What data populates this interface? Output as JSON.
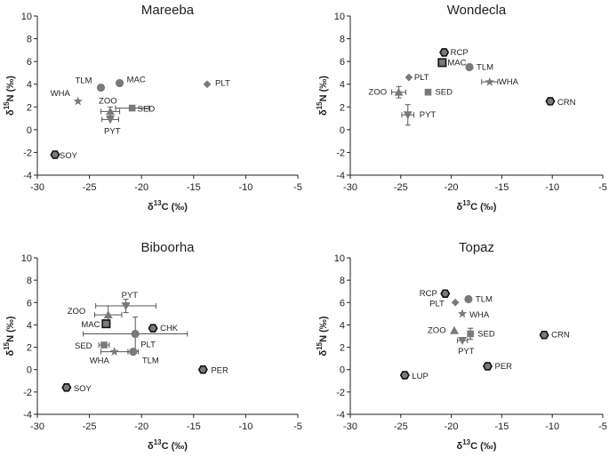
{
  "chart_data": [
    {
      "type": "scatter",
      "title": "Mareeba",
      "xlabel": "δ13C (‰)",
      "ylabel": "δ15N (‰)",
      "xlim": [
        -30,
        -5
      ],
      "ylim": [
        -4,
        10
      ],
      "xticks": [
        -30,
        -25,
        -20,
        -15,
        -10,
        -5
      ],
      "yticks": [
        -4,
        -2,
        0,
        2,
        4,
        6,
        8,
        10
      ],
      "grid": false,
      "points": [
        {
          "label": "TLM",
          "x": -23.9,
          "y": 3.7,
          "marker": "circle"
        },
        {
          "label": "MAC",
          "x": -22.1,
          "y": 4.1,
          "marker": "circle"
        },
        {
          "label": "PLT",
          "x": -13.7,
          "y": 4.0,
          "marker": "diamond"
        },
        {
          "label": "WHA",
          "x": -26.1,
          "y": 2.5,
          "marker": "star"
        },
        {
          "label": "ZOO",
          "x": -23.0,
          "y": 1.6,
          "marker": "triangle",
          "xerr": 0.9,
          "yerr": 0.4
        },
        {
          "label": "SED",
          "x": -20.9,
          "y": 1.9,
          "marker": "square",
          "xerr": 1.6
        },
        {
          "label": "PYT",
          "x": -23.0,
          "y": 0.9,
          "marker": "triangle-down",
          "xerr": 0.8
        },
        {
          "label": "SOY",
          "x": -28.3,
          "y": -2.2,
          "marker": "hexagon"
        }
      ]
    },
    {
      "type": "scatter",
      "title": "Wondecla",
      "xlabel": "δ13C (‰)",
      "ylabel": "δ15N (‰)",
      "xlim": [
        -30,
        -5
      ],
      "ylim": [
        -4,
        10
      ],
      "xticks": [
        -30,
        -25,
        -20,
        -15,
        -10,
        -5
      ],
      "yticks": [
        -4,
        -2,
        0,
        2,
        4,
        6,
        8,
        10
      ],
      "grid": false,
      "points": [
        {
          "label": "RCP",
          "x": -20.7,
          "y": 6.8,
          "marker": "hexagon"
        },
        {
          "label": "MAC",
          "x": -20.9,
          "y": 5.9,
          "marker": "square-black"
        },
        {
          "label": "TLM",
          "x": -18.2,
          "y": 5.5,
          "marker": "circle"
        },
        {
          "label": "PLT",
          "x": -24.2,
          "y": 4.6,
          "marker": "diamond"
        },
        {
          "label": "WHA",
          "x": -16.2,
          "y": 4.2,
          "marker": "star",
          "xerr": 0.8
        },
        {
          "label": "ZOO",
          "x": -25.2,
          "y": 3.3,
          "marker": "triangle",
          "xerr": 0.7,
          "yerr": 0.5
        },
        {
          "label": "SED",
          "x": -22.3,
          "y": 3.3,
          "marker": "square"
        },
        {
          "label": "CRN",
          "x": -10.2,
          "y": 2.5,
          "marker": "hexagon"
        },
        {
          "label": "PYT",
          "x": -24.3,
          "y": 1.3,
          "marker": "triangle-down",
          "xerr": 0.6,
          "yerr": 0.9
        }
      ]
    },
    {
      "type": "scatter",
      "title": "Biboorha",
      "xlabel": "δ13C (‰)",
      "ylabel": "δ15N (‰)",
      "xlim": [
        -30,
        -5
      ],
      "ylim": [
        -4,
        10
      ],
      "xticks": [
        -30,
        -25,
        -20,
        -15,
        -10,
        -5
      ],
      "yticks": [
        -4,
        -2,
        0,
        2,
        4,
        6,
        8,
        10
      ],
      "grid": false,
      "points": [
        {
          "label": "PYT",
          "x": -21.5,
          "y": 5.7,
          "marker": "triangle-down",
          "xerr": 2.9,
          "yerr": 0.6
        },
        {
          "label": "ZOO",
          "x": -23.2,
          "y": 4.9,
          "marker": "triangle",
          "xerr": 1.3,
          "yerr": 0.8
        },
        {
          "label": "MAC",
          "x": -23.4,
          "y": 4.1,
          "marker": "square-black"
        },
        {
          "label": "CHK",
          "x": -18.9,
          "y": 3.7,
          "marker": "hexagon"
        },
        {
          "label": "PLT",
          "x": -20.6,
          "y": 3.2,
          "marker": "circle",
          "xerr": 5.0,
          "yerr": 1.5
        },
        {
          "label": "SED",
          "x": -23.6,
          "y": 2.2,
          "marker": "square",
          "xerr": 0.5
        },
        {
          "label": "WHA",
          "x": -22.6,
          "y": 1.6,
          "marker": "star",
          "xerr": 1.3
        },
        {
          "label": "TLM",
          "x": -20.8,
          "y": 1.6,
          "marker": "circle",
          "xerr": 0.5
        },
        {
          "label": "PER",
          "x": -14.1,
          "y": 0.0,
          "marker": "hexagon"
        },
        {
          "label": "SOY",
          "x": -27.2,
          "y": -1.6,
          "marker": "hexagon"
        }
      ]
    },
    {
      "type": "scatter",
      "title": "Topaz",
      "xlabel": "δ13C (‰)",
      "ylabel": "δ15N (‰)",
      "xlim": [
        -30,
        -5
      ],
      "ylim": [
        -4,
        10
      ],
      "xticks": [
        -30,
        -25,
        -20,
        -15,
        -10,
        -5
      ],
      "yticks": [
        -4,
        -2,
        0,
        2,
        4,
        6,
        8,
        10
      ],
      "grid": false,
      "points": [
        {
          "label": "RCP",
          "x": -20.6,
          "y": 6.8,
          "marker": "hexagon"
        },
        {
          "label": "TLM",
          "x": -18.3,
          "y": 6.3,
          "marker": "circle"
        },
        {
          "label": "PLT",
          "x": -19.6,
          "y": 6.0,
          "marker": "diamond"
        },
        {
          "label": "WHA",
          "x": -18.9,
          "y": 5.0,
          "marker": "star"
        },
        {
          "label": "ZOO",
          "x": -19.7,
          "y": 3.5,
          "marker": "triangle"
        },
        {
          "label": "SED",
          "x": -18.1,
          "y": 3.2,
          "marker": "square",
          "yerr": 0.5
        },
        {
          "label": "CRN",
          "x": -10.8,
          "y": 3.1,
          "marker": "hexagon"
        },
        {
          "label": "PYT",
          "x": -18.9,
          "y": 2.6,
          "marker": "triangle-down",
          "xerr": 0.5
        },
        {
          "label": "PER",
          "x": -16.4,
          "y": 0.3,
          "marker": "hexagon"
        },
        {
          "label": "LUP",
          "x": -24.6,
          "y": -0.5,
          "marker": "hexagon"
        }
      ]
    }
  ],
  "colors": {
    "marker": "#7a7a7a",
    "dark": "#111111",
    "axis": "#222222"
  }
}
